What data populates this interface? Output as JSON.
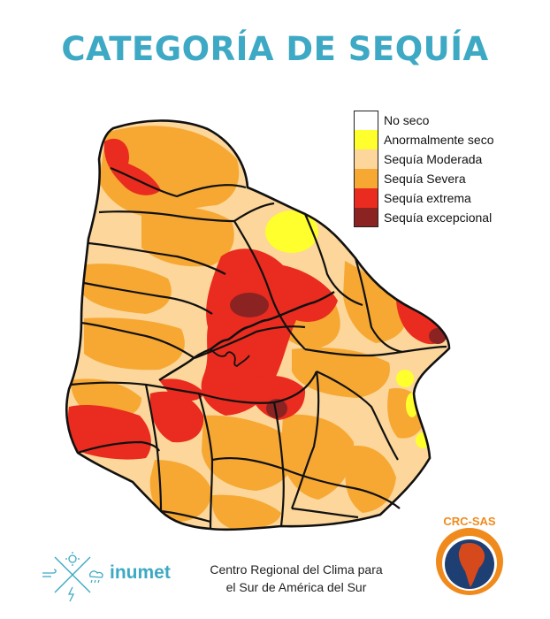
{
  "title": "CATEGORÍA DE SEQUÍA",
  "legend": {
    "items": [
      {
        "label": "No seco",
        "color": "#ffffff"
      },
      {
        "label": "Anormalmente seco",
        "color": "#ffff2e"
      },
      {
        "label": "Sequía Moderada",
        "color": "#fcd69a"
      },
      {
        "label": "Sequía Severa",
        "color": "#f6a833"
      },
      {
        "label": "Sequía extrema",
        "color": "#ea2b1f"
      },
      {
        "label": "Sequía excepcional",
        "color": "#8b2323"
      }
    ]
  },
  "footer": {
    "credit_line1": "Centro Regional del Clima para",
    "credit_line2": "el Sur de América del Sur",
    "agency_name": "inumet",
    "logo_text": "CRC-SAS"
  },
  "colors": {
    "title": "#3ea9c4",
    "border": "#111111"
  },
  "icons": [
    "sun-icon",
    "cloud-icon",
    "wind-icon",
    "rain-icon",
    "lightning-icon",
    "south-america-icon"
  ]
}
